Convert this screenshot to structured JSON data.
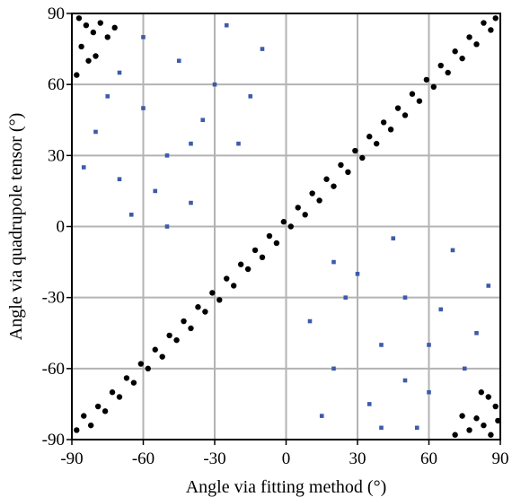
{
  "chart_data": {
    "type": "scatter",
    "title": "",
    "xlabel": "Angle via fitting method (°)",
    "ylabel": "Angle via quadrupole tensor (°)",
    "xlim": [
      -90,
      90
    ],
    "ylim": [
      -90,
      90
    ],
    "xticks": [
      -90,
      -60,
      -30,
      0,
      30,
      60,
      90
    ],
    "yticks": [
      -90,
      -60,
      -30,
      0,
      30,
      60,
      90
    ],
    "grid": true,
    "legend": "none",
    "series": [
      {
        "marker": "circle",
        "color": "#000000",
        "values": [
          [
            -88,
            -86
          ],
          [
            -85,
            -80
          ],
          [
            -82,
            -84
          ],
          [
            -79,
            -76
          ],
          [
            -76,
            -78
          ],
          [
            -73,
            -70
          ],
          [
            -70,
            -72
          ],
          [
            -67,
            -64
          ],
          [
            -64,
            -66
          ],
          [
            -61,
            -58
          ],
          [
            -58,
            -60
          ],
          [
            -55,
            -52
          ],
          [
            -52,
            -55
          ],
          [
            -49,
            -46
          ],
          [
            -46,
            -48
          ],
          [
            -43,
            -40
          ],
          [
            -40,
            -43
          ],
          [
            -37,
            -34
          ],
          [
            -34,
            -36
          ],
          [
            -31,
            -28
          ],
          [
            -28,
            -31
          ],
          [
            -25,
            -22
          ],
          [
            -22,
            -25
          ],
          [
            -19,
            -16
          ],
          [
            -16,
            -18
          ],
          [
            -13,
            -10
          ],
          [
            -10,
            -13
          ],
          [
            -7,
            -4
          ],
          [
            -4,
            -7
          ],
          [
            -1,
            2
          ],
          [
            2,
            0
          ],
          [
            5,
            8
          ],
          [
            8,
            5
          ],
          [
            11,
            14
          ],
          [
            14,
            11
          ],
          [
            17,
            20
          ],
          [
            20,
            17
          ],
          [
            23,
            26
          ],
          [
            26,
            23
          ],
          [
            29,
            32
          ],
          [
            32,
            29
          ],
          [
            35,
            38
          ],
          [
            38,
            35
          ],
          [
            41,
            44
          ],
          [
            44,
            41
          ],
          [
            47,
            50
          ],
          [
            50,
            47
          ],
          [
            53,
            56
          ],
          [
            56,
            53
          ],
          [
            59,
            62
          ],
          [
            62,
            59
          ],
          [
            65,
            68
          ],
          [
            68,
            65
          ],
          [
            71,
            74
          ],
          [
            74,
            71
          ],
          [
            77,
            80
          ],
          [
            80,
            77
          ],
          [
            83,
            86
          ],
          [
            86,
            83
          ],
          [
            88,
            88
          ],
          [
            -87,
            88
          ],
          [
            -84,
            85
          ],
          [
            -81,
            82
          ],
          [
            -78,
            86
          ],
          [
            -75,
            80
          ],
          [
            -86,
            76
          ],
          [
            -83,
            70
          ],
          [
            -88,
            64
          ],
          [
            -80,
            72
          ],
          [
            -72,
            84
          ],
          [
            86,
            -88
          ],
          [
            83,
            -84
          ],
          [
            80,
            -81
          ],
          [
            77,
            -86
          ],
          [
            74,
            -80
          ],
          [
            88,
            -76
          ],
          [
            85,
            -72
          ],
          [
            82,
            -70
          ],
          [
            89,
            -82
          ],
          [
            71,
            -88
          ]
        ]
      },
      {
        "marker": "square",
        "color": "#3d5ba9",
        "values": [
          [
            -80,
            40
          ],
          [
            -70,
            20
          ],
          [
            -60,
            50
          ],
          [
            -50,
            30
          ],
          [
            -40,
            10
          ],
          [
            -30,
            60
          ],
          [
            -20,
            35
          ],
          [
            -10,
            75
          ],
          [
            -65,
            5
          ],
          [
            -45,
            70
          ],
          [
            -25,
            85
          ],
          [
            -75,
            55
          ],
          [
            -55,
            15
          ],
          [
            -35,
            45
          ],
          [
            -15,
            55
          ],
          [
            -85,
            25
          ],
          [
            -60,
            80
          ],
          [
            -40,
            35
          ],
          [
            -70,
            65
          ],
          [
            -50,
            0
          ],
          [
            10,
            -40
          ],
          [
            20,
            -60
          ],
          [
            30,
            -20
          ],
          [
            40,
            -50
          ],
          [
            50,
            -30
          ],
          [
            60,
            -70
          ],
          [
            70,
            -10
          ],
          [
            80,
            -45
          ],
          [
            15,
            -80
          ],
          [
            35,
            -75
          ],
          [
            55,
            -85
          ],
          [
            65,
            -35
          ],
          [
            45,
            -5
          ],
          [
            25,
            -30
          ],
          [
            75,
            -60
          ],
          [
            85,
            -25
          ],
          [
            50,
            -65
          ],
          [
            20,
            -15
          ],
          [
            60,
            -50
          ],
          [
            40,
            -85
          ]
        ]
      }
    ]
  }
}
